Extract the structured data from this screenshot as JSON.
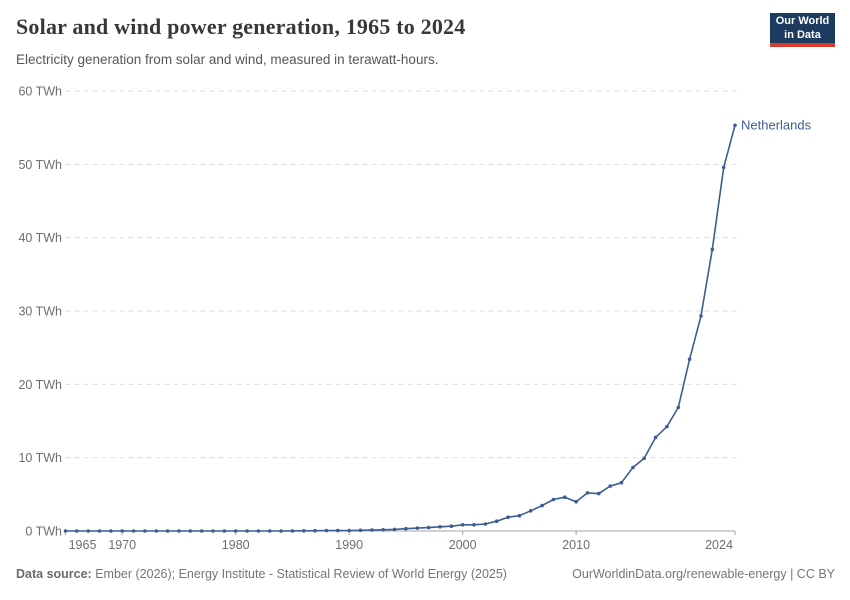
{
  "header": {
    "title": "Solar and wind power generation, 1965 to 2024",
    "subtitle": "Electricity generation from solar and wind, measured in terawatt-hours.",
    "logo": {
      "line1": "Our World",
      "line2": "in Data"
    }
  },
  "chart_data": {
    "type": "line",
    "title": "Solar and wind power generation, 1965 to 2024",
    "xlabel": "",
    "ylabel": "terawatt-hours",
    "x_range": [
      1965,
      2024
    ],
    "ylim": [
      0,
      60
    ],
    "y_ticks": [
      0,
      10,
      20,
      30,
      40,
      50,
      60
    ],
    "y_tick_suffix": " TWh",
    "x_ticks": [
      1965,
      1970,
      1980,
      1990,
      2000,
      2010,
      2024
    ],
    "grid": "horizontal-dashed",
    "legend_position": "end-of-line-label",
    "grid_color": "#dddddd",
    "axis_color": "#a5a5a5",
    "tick_label_color": "#6e6e6e",
    "series": [
      {
        "name": "Netherlands",
        "color": "#3d5c94",
        "years": [
          1965,
          1966,
          1967,
          1968,
          1969,
          1970,
          1971,
          1972,
          1973,
          1974,
          1975,
          1976,
          1977,
          1978,
          1979,
          1980,
          1981,
          1982,
          1983,
          1984,
          1985,
          1986,
          1987,
          1988,
          1989,
          1990,
          1991,
          1992,
          1993,
          1994,
          1995,
          1996,
          1997,
          1998,
          1999,
          2000,
          2001,
          2002,
          2003,
          2004,
          2005,
          2006,
          2007,
          2008,
          2009,
          2010,
          2011,
          2012,
          2013,
          2014,
          2015,
          2016,
          2017,
          2018,
          2019,
          2020,
          2021,
          2022,
          2023,
          2024
        ],
        "values": [
          0,
          0,
          0,
          0,
          0,
          0,
          0,
          0,
          0,
          0,
          0,
          0,
          0,
          0,
          0,
          0,
          0,
          0,
          0,
          0,
          0.02,
          0.03,
          0.04,
          0.05,
          0.06,
          0.06,
          0.09,
          0.14,
          0.17,
          0.22,
          0.32,
          0.4,
          0.46,
          0.57,
          0.65,
          0.84,
          0.84,
          0.96,
          1.33,
          1.88,
          2.09,
          2.75,
          3.46,
          4.29,
          4.61,
          4.0,
          5.2,
          5.1,
          6.12,
          6.59,
          8.66,
          9.92,
          12.77,
          14.24,
          16.85,
          23.43,
          29.33,
          38.4,
          49.58,
          55.32
        ]
      }
    ]
  },
  "footer": {
    "source_label": "Data source:",
    "source_text": " Ember (2026); Energy Institute - Statistical Review of World Energy (2025)",
    "link_text": "OurWorldinData.org/renewable-energy | CC BY"
  }
}
